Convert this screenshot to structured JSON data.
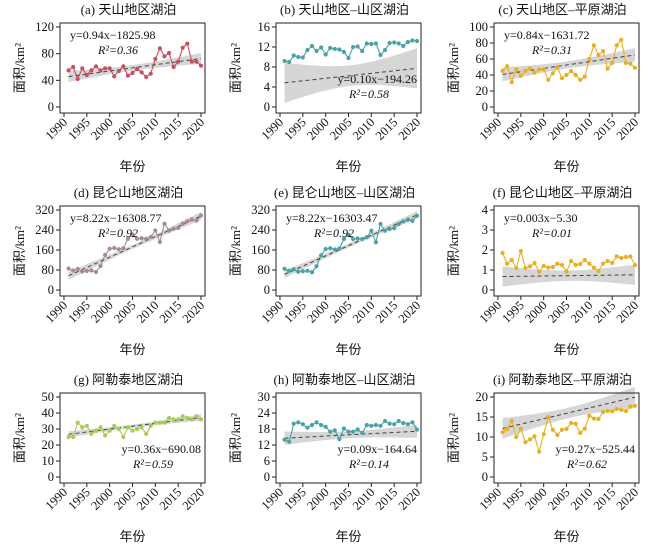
{
  "figure": {
    "x_label": "年份",
    "y_label": "面积/km²",
    "x_ticks": [
      "1990",
      "1995",
      "2000",
      "2005",
      "2010",
      "2015",
      "2020"
    ]
  },
  "chart_data": [
    {
      "id": "a",
      "type": "line",
      "title": "(a) 天山地区湖泊",
      "xlabel": "年份",
      "ylabel": "面积/km²",
      "xlim": [
        1990,
        2020
      ],
      "ylim": [
        0,
        120
      ],
      "yticks": [
        0,
        40,
        80,
        120
      ],
      "color": "#c8505e",
      "equation": "y=0.94x−1825.98",
      "r2": "R²=0.36",
      "eq_position": "top-left",
      "fit": {
        "slope": 0.94,
        "intercept": -1825.98
      },
      "x": [
        1991,
        1992,
        1993,
        1994,
        1995,
        1996,
        1997,
        1998,
        1999,
        2000,
        2001,
        2002,
        2003,
        2004,
        2005,
        2006,
        2007,
        2008,
        2009,
        2010,
        2011,
        2012,
        2013,
        2014,
        2015,
        2016,
        2017,
        2018,
        2019,
        2020
      ],
      "values": [
        55,
        60,
        42,
        58,
        48,
        55,
        61,
        55,
        58,
        58,
        46,
        54,
        61,
        47,
        51,
        57,
        52,
        45,
        50,
        72,
        88,
        76,
        81,
        60,
        68,
        89,
        95,
        68,
        68,
        62
      ]
    },
    {
      "id": "b",
      "type": "line",
      "title": "(b) 天山地区–山区湖泊",
      "xlabel": "年份",
      "ylabel": "面积/km²",
      "xlim": [
        1990,
        2020
      ],
      "ylim": [
        0,
        16
      ],
      "yticks": [
        0,
        4,
        8,
        12,
        16
      ],
      "color": "#4aa3a6",
      "equation": "y=0.10x−194.26",
      "r2": "R²=0.58",
      "eq_position": "bottom-right",
      "fit": {
        "slope": 0.1,
        "intercept": -194.26
      },
      "x": [
        1991,
        1992,
        1993,
        1994,
        1995,
        1996,
        1997,
        1998,
        1999,
        2000,
        2001,
        2002,
        2003,
        2004,
        2005,
        2006,
        2007,
        2008,
        2009,
        2010,
        2011,
        2012,
        2013,
        2014,
        2015,
        2016,
        2017,
        2018,
        2019,
        2020
      ],
      "values": [
        9.2,
        9.0,
        10.3,
        10.0,
        9.9,
        11.4,
        12.2,
        11.2,
        11.9,
        10.5,
        11.8,
        11.6,
        11.5,
        11.0,
        9.8,
        12.0,
        12.1,
        11.2,
        12.7,
        12.6,
        12.7,
        10.4,
        11.4,
        12.8,
        12.9,
        12.7,
        12.2,
        13.0,
        13.3,
        13.2
      ]
    },
    {
      "id": "c",
      "type": "line",
      "title": "(c) 天山地区–平原湖泊",
      "xlabel": "年份",
      "ylabel": "面积/km²",
      "xlim": [
        1990,
        2020
      ],
      "ylim": [
        0,
        100
      ],
      "yticks": [
        0,
        20,
        40,
        60,
        80,
        100
      ],
      "color": "#e8b021",
      "equation": "y=0.84x−1631.72",
      "r2": "R²=0.31",
      "eq_position": "top-left",
      "fit": {
        "slope": 0.84,
        "intercept": -1631.72
      },
      "x": [
        1991,
        1992,
        1993,
        1994,
        1995,
        1996,
        1997,
        1998,
        1999,
        2000,
        2001,
        2002,
        2003,
        2004,
        2005,
        2006,
        2007,
        2008,
        2009,
        2010,
        2011,
        2012,
        2013,
        2014,
        2015,
        2016,
        2017,
        2018,
        2019,
        2020
      ],
      "values": [
        45,
        51,
        31,
        47,
        39,
        45,
        48,
        43,
        47,
        47,
        34,
        42,
        50,
        36,
        40,
        45,
        40,
        34,
        38,
        60,
        77,
        65,
        70,
        48,
        55,
        77,
        84,
        55,
        54,
        49
      ]
    },
    {
      "id": "d",
      "type": "line",
      "title": "(d) 昆仑山地区湖泊",
      "xlabel": "年份",
      "ylabel": "面积/km²",
      "xlim": [
        1990,
        2020
      ],
      "ylim": [
        0,
        320
      ],
      "yticks": [
        0,
        80,
        160,
        240,
        320
      ],
      "color": "#a88a9e",
      "equation": "y=8.22x−16308.77",
      "r2": "R²=0.92",
      "eq_position": "top-left",
      "fit": {
        "slope": 8.22,
        "intercept": -16308.77
      },
      "x": [
        1991,
        1992,
        1993,
        1994,
        1995,
        1996,
        1997,
        1998,
        1999,
        2000,
        2001,
        2002,
        2003,
        2004,
        2005,
        2006,
        2007,
        2008,
        2009,
        2010,
        2011,
        2012,
        2013,
        2014,
        2015,
        2016,
        2017,
        2018,
        2019,
        2020
      ],
      "values": [
        86,
        78,
        84,
        74,
        76,
        78,
        72,
        96,
        140,
        165,
        168,
        163,
        167,
        205,
        222,
        205,
        207,
        205,
        212,
        238,
        192,
        265,
        238,
        245,
        248,
        265,
        275,
        282,
        278,
        298
      ]
    },
    {
      "id": "e",
      "type": "line",
      "title": "(e) 昆仑山地区–山区湖泊",
      "xlabel": "年份",
      "ylabel": "面积/km²",
      "xlim": [
        1990,
        2020
      ],
      "ylim": [
        0,
        320
      ],
      "yticks": [
        0,
        80,
        160,
        240,
        320
      ],
      "color": "#4aa3a6",
      "equation": "y=8.22x−16303.47",
      "r2": "R²=0.92",
      "eq_position": "top-left",
      "fit": {
        "slope": 8.22,
        "intercept": -16303.47
      },
      "x": [
        1991,
        1992,
        1993,
        1994,
        1995,
        1996,
        1997,
        1998,
        1999,
        2000,
        2001,
        2002,
        2003,
        2004,
        2005,
        2006,
        2007,
        2008,
        2009,
        2010,
        2011,
        2012,
        2013,
        2014,
        2015,
        2016,
        2017,
        2018,
        2019,
        2020
      ],
      "values": [
        85,
        77,
        83,
        73,
        75,
        77,
        71,
        95,
        139,
        164,
        167,
        162,
        166,
        204,
        221,
        204,
        206,
        204,
        211,
        237,
        191,
        264,
        237,
        244,
        247,
        264,
        274,
        281,
        277,
        297
      ]
    },
    {
      "id": "f",
      "type": "line",
      "title": "(f) 昆仑山地区–平原湖泊",
      "xlabel": "年份",
      "ylabel": "面积/km²",
      "xlim": [
        1990,
        2020
      ],
      "ylim": [
        0,
        4
      ],
      "yticks": [
        0,
        1,
        2,
        3,
        4
      ],
      "color": "#e8b021",
      "equation": "y=0.003x−5.30",
      "r2": "R²=0.01",
      "eq_position": "top-left",
      "fit": {
        "slope": 0.003,
        "intercept": -5.3
      },
      "x": [
        1991,
        1992,
        1993,
        1994,
        1995,
        1996,
        1997,
        1998,
        1999,
        2000,
        2001,
        2002,
        2003,
        2004,
        2005,
        2006,
        2007,
        2008,
        2009,
        2010,
        2011,
        2012,
        2013,
        2014,
        2015,
        2016,
        2017,
        2018,
        2019,
        2020
      ],
      "values": [
        1.85,
        1.32,
        1.5,
        1.1,
        1.95,
        1.1,
        1.18,
        1.35,
        0.92,
        1.2,
        1.12,
        1.15,
        1.32,
        1.25,
        0.92,
        1.45,
        1.25,
        1.3,
        1.5,
        1.32,
        1.12,
        0.95,
        1.32,
        1.45,
        1.35,
        1.68,
        1.6,
        1.65,
        1.68,
        1.25
      ]
    },
    {
      "id": "g",
      "type": "line",
      "title": "(g) 阿勒泰地区湖泊",
      "xlabel": "年份",
      "ylabel": "面积/km²",
      "xlim": [
        1990,
        2020
      ],
      "ylim": [
        0,
        50
      ],
      "yticks": [
        0,
        10,
        20,
        30,
        40,
        50
      ],
      "color": "#a8cc52",
      "equation": "y=0.36x−690.08",
      "r2": "R²=0.59",
      "eq_position": "bottom-right",
      "fit": {
        "slope": 0.36,
        "intercept": -690.08
      },
      "x": [
        1991,
        1992,
        1993,
        1994,
        1995,
        1996,
        1997,
        1998,
        1999,
        2000,
        2001,
        2002,
        2003,
        2004,
        2005,
        2006,
        2007,
        2008,
        2009,
        2010,
        2011,
        2012,
        2013,
        2014,
        2015,
        2016,
        2017,
        2018,
        2019,
        2020
      ],
      "values": [
        25,
        25,
        34,
        31,
        32,
        27,
        29,
        31,
        26,
        29,
        32,
        30,
        25,
        31,
        29,
        30,
        31,
        27,
        32,
        34,
        34,
        34,
        37,
        36,
        36,
        38,
        37,
        36,
        38,
        36
      ]
    },
    {
      "id": "h",
      "type": "line",
      "title": "(h) 阿勒泰地区–山区湖泊",
      "xlabel": "年份",
      "ylabel": "面积/km²",
      "xlim": [
        1990,
        2020
      ],
      "ylim": [
        0,
        30
      ],
      "yticks": [
        0,
        6,
        12,
        18,
        24,
        30
      ],
      "color": "#4aa3a6",
      "equation": "y=0.09x−164.64",
      "r2": "R²=0.14",
      "eq_position": "bottom-right",
      "fit": {
        "slope": 0.09,
        "intercept": -164.64
      },
      "x": [
        1991,
        1992,
        1993,
        1994,
        1995,
        1996,
        1997,
        1998,
        1999,
        2000,
        2001,
        2002,
        2003,
        2004,
        2005,
        2006,
        2007,
        2008,
        2009,
        2010,
        2011,
        2012,
        2013,
        2014,
        2015,
        2016,
        2017,
        2018,
        2019,
        2020
      ],
      "values": [
        14,
        13.2,
        20,
        20.5,
        19.8,
        18.5,
        19.5,
        20.5,
        19.5,
        18.8,
        17,
        17.5,
        14.2,
        18.2,
        17,
        17,
        17.8,
        16.5,
        19.5,
        19.2,
        19.5,
        19.2,
        21,
        20,
        19.8,
        21,
        20.2,
        19.8,
        20.5,
        17.8
      ]
    },
    {
      "id": "i",
      "type": "line",
      "title": "(i) 阿勒泰地区–平原湖泊",
      "xlabel": "年份",
      "ylabel": "面积/km²",
      "xlim": [
        1990,
        2020
      ],
      "ylim": [
        0,
        20
      ],
      "yticks": [
        0,
        5,
        10,
        15,
        20
      ],
      "color": "#e8b021",
      "equation": "y=0.27x−525.44",
      "r2": "R²=0.62",
      "eq_position": "bottom-right",
      "fit": {
        "slope": 0.27,
        "intercept": -525.44
      },
      "x": [
        1991,
        1992,
        1993,
        1994,
        1995,
        1996,
        1997,
        1998,
        1999,
        2000,
        2001,
        2002,
        2003,
        2004,
        2005,
        2006,
        2007,
        2008,
        2009,
        2010,
        2011,
        2012,
        2013,
        2014,
        2015,
        2016,
        2017,
        2018,
        2019,
        2020
      ],
      "values": [
        11.2,
        12.0,
        14.0,
        10.0,
        12.1,
        8.7,
        9.4,
        10.2,
        6.3,
        10.7,
        15.0,
        11.8,
        10.5,
        11.8,
        12.0,
        13.5,
        13.3,
        11.0,
        12.1,
        15.3,
        14.6,
        14.5,
        16.2,
        16.5,
        16.4,
        17.0,
        16.8,
        16.5,
        17.6,
        17.8
      ]
    }
  ]
}
